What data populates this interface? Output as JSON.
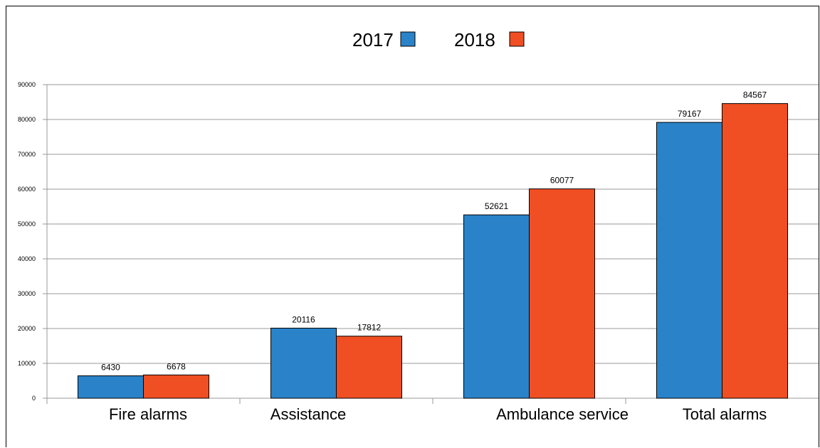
{
  "chart_data": {
    "type": "bar",
    "categories": [
      "Fire alarms",
      "Assistance",
      "Ambulance service",
      "Total alarms"
    ],
    "series": [
      {
        "name": "2017",
        "color": "#2a83c8",
        "values": [
          6430,
          20116,
          52621,
          79167
        ]
      },
      {
        "name": "2018",
        "color": "#f04e23",
        "values": [
          6678,
          17812,
          60077,
          84567
        ]
      }
    ],
    "ylim": [
      0,
      90000
    ],
    "yticks": [
      0,
      10000,
      20000,
      30000,
      40000,
      50000,
      60000,
      70000,
      80000,
      90000
    ],
    "grid": true,
    "legend_position": "top-center",
    "title": "",
    "xlabel": "",
    "ylabel": ""
  }
}
